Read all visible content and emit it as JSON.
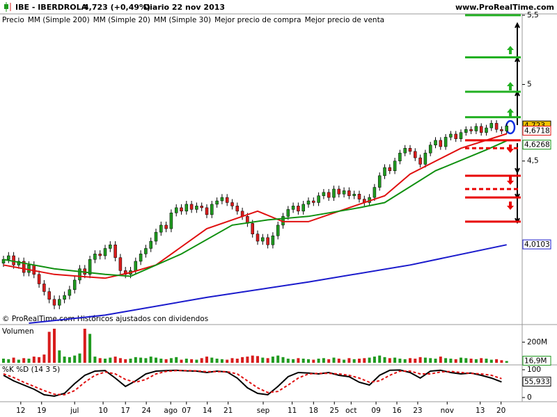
{
  "header": {
    "symbol": "IBE - IBERDROLA",
    "quote": "4,723 (+0,49%)",
    "period": "Diario  22 nov 2013",
    "site": "www.ProRealTime.com"
  },
  "footer": "© ProRealTime.com  Históricos ajustados con dividendos",
  "chart_data": [
    {
      "type": "candlestick",
      "name": "Precio",
      "color": "#000000",
      "up_color": "#1f9a1f",
      "down_color": "#d81c1c",
      "log_scale": true,
      "ylim": [
        3.6,
        5.51
      ],
      "yticks": [
        {
          "value": 4.5,
          "label": "4,5"
        },
        {
          "value": 5,
          "label": "5"
        },
        {
          "value": 5.5,
          "label": "5,5"
        }
      ],
      "end_label": "4,723",
      "xticks": [
        {
          "value": 3.4,
          "label": "12"
        },
        {
          "value": 7.5,
          "label": "19"
        },
        {
          "value": 14,
          "label": "jul"
        },
        {
          "value": 19.6,
          "label": "10"
        },
        {
          "value": 24,
          "label": "17"
        },
        {
          "value": 28.1,
          "label": "24"
        },
        {
          "value": 32.9,
          "label": "ago"
        },
        {
          "value": 36,
          "label": "07"
        },
        {
          "value": 40.1,
          "label": "14"
        },
        {
          "value": 44.2,
          "label": "21"
        },
        {
          "value": 51.1,
          "label": "sep"
        },
        {
          "value": 56.8,
          "label": "11"
        },
        {
          "value": 61,
          "label": "18"
        },
        {
          "value": 65.1,
          "label": "25"
        },
        {
          "value": 68.4,
          "label": "oct"
        },
        {
          "value": 73.3,
          "label": "09"
        },
        {
          "value": 77.4,
          "label": "16"
        },
        {
          "value": 81.5,
          "label": "23"
        },
        {
          "value": 87.3,
          "label": "nov"
        },
        {
          "value": 93.8,
          "label": "13"
        },
        {
          "value": 97.9,
          "label": "20"
        }
      ],
      "ohlc": [
        [
          3.91,
          3.95,
          3.89,
          3.93
        ],
        [
          3.93,
          3.97,
          3.91,
          3.95
        ],
        [
          3.95,
          3.97,
          3.88,
          3.9
        ],
        [
          3.9,
          3.94,
          3.88,
          3.92
        ],
        [
          3.92,
          3.94,
          3.84,
          3.86
        ],
        [
          3.86,
          3.92,
          3.84,
          3.9
        ],
        [
          3.9,
          3.92,
          3.83,
          3.85
        ],
        [
          3.85,
          3.87,
          3.78,
          3.8
        ],
        [
          3.8,
          3.82,
          3.74,
          3.76
        ],
        [
          3.76,
          3.78,
          3.7,
          3.72
        ],
        [
          3.72,
          3.74,
          3.67,
          3.69
        ],
        [
          3.69,
          3.74,
          3.67,
          3.72
        ],
        [
          3.72,
          3.76,
          3.7,
          3.74
        ],
        [
          3.74,
          3.79,
          3.72,
          3.77
        ],
        [
          3.77,
          3.84,
          3.75,
          3.82
        ],
        [
          3.82,
          3.9,
          3.8,
          3.88
        ],
        [
          3.88,
          3.9,
          3.83,
          3.85
        ],
        [
          3.85,
          3.95,
          3.83,
          3.93
        ],
        [
          3.93,
          3.98,
          3.91,
          3.96
        ],
        [
          3.96,
          3.98,
          3.93,
          3.95
        ],
        [
          3.95,
          4.01,
          3.93,
          3.99
        ],
        [
          3.99,
          4.03,
          3.97,
          4.01
        ],
        [
          4.01,
          4.03,
          3.92,
          3.94
        ],
        [
          3.94,
          3.96,
          3.85,
          3.87
        ],
        [
          3.87,
          3.89,
          3.83,
          3.85
        ],
        [
          3.85,
          3.89,
          3.83,
          3.87
        ],
        [
          3.87,
          3.94,
          3.85,
          3.92
        ],
        [
          3.92,
          3.98,
          3.9,
          3.96
        ],
        [
          3.96,
          4.01,
          3.94,
          3.99
        ],
        [
          3.99,
          4.05,
          3.97,
          4.03
        ],
        [
          4.03,
          4.1,
          4.01,
          4.08
        ],
        [
          4.08,
          4.14,
          4.06,
          4.12
        ],
        [
          4.12,
          4.14,
          4.08,
          4.1
        ],
        [
          4.1,
          4.21,
          4.08,
          4.19
        ],
        [
          4.19,
          4.24,
          4.17,
          4.22
        ],
        [
          4.22,
          4.24,
          4.18,
          4.2
        ],
        [
          4.2,
          4.26,
          4.18,
          4.24
        ],
        [
          4.24,
          4.26,
          4.19,
          4.21
        ],
        [
          4.21,
          4.25,
          4.19,
          4.23
        ],
        [
          4.23,
          4.25,
          4.2,
          4.22
        ],
        [
          4.22,
          4.24,
          4.16,
          4.18
        ],
        [
          4.18,
          4.26,
          4.16,
          4.24
        ],
        [
          4.24,
          4.28,
          4.22,
          4.26
        ],
        [
          4.26,
          4.3,
          4.24,
          4.28
        ],
        [
          4.28,
          4.3,
          4.23,
          4.25
        ],
        [
          4.25,
          4.27,
          4.21,
          4.23
        ],
        [
          4.23,
          4.25,
          4.18,
          4.2
        ],
        [
          4.2,
          4.22,
          4.15,
          4.17
        ],
        [
          4.17,
          4.19,
          4.11,
          4.13
        ],
        [
          4.13,
          4.15,
          4.05,
          4.07
        ],
        [
          4.07,
          4.09,
          4.01,
          4.03
        ],
        [
          4.03,
          4.07,
          4.01,
          4.05
        ],
        [
          4.05,
          4.07,
          3.99,
          4.01
        ],
        [
          4.01,
          4.08,
          3.99,
          4.06
        ],
        [
          4.06,
          4.14,
          4.04,
          4.12
        ],
        [
          4.12,
          4.19,
          4.1,
          4.17
        ],
        [
          4.17,
          4.23,
          4.15,
          4.21
        ],
        [
          4.21,
          4.25,
          4.19,
          4.23
        ],
        [
          4.23,
          4.25,
          4.18,
          4.2
        ],
        [
          4.2,
          4.26,
          4.18,
          4.24
        ],
        [
          4.24,
          4.28,
          4.22,
          4.26
        ],
        [
          4.26,
          4.28,
          4.23,
          4.25
        ],
        [
          4.25,
          4.31,
          4.23,
          4.29
        ],
        [
          4.29,
          4.33,
          4.27,
          4.31
        ],
        [
          4.31,
          4.33,
          4.26,
          4.28
        ],
        [
          4.28,
          4.35,
          4.26,
          4.33
        ],
        [
          4.33,
          4.35,
          4.28,
          4.3
        ],
        [
          4.3,
          4.34,
          4.28,
          4.32
        ],
        [
          4.32,
          4.34,
          4.27,
          4.29
        ],
        [
          4.29,
          4.32,
          4.27,
          4.3
        ],
        [
          4.3,
          4.32,
          4.25,
          4.27
        ],
        [
          4.27,
          4.29,
          4.23,
          4.25
        ],
        [
          4.25,
          4.3,
          4.23,
          4.28
        ],
        [
          4.28,
          4.36,
          4.26,
          4.34
        ],
        [
          4.34,
          4.43,
          4.32,
          4.41
        ],
        [
          4.41,
          4.48,
          4.39,
          4.46
        ],
        [
          4.46,
          4.48,
          4.42,
          4.44
        ],
        [
          4.44,
          4.52,
          4.42,
          4.5
        ],
        [
          4.5,
          4.57,
          4.48,
          4.55
        ],
        [
          4.55,
          4.6,
          4.53,
          4.58
        ],
        [
          4.58,
          4.6,
          4.54,
          4.56
        ],
        [
          4.56,
          4.58,
          4.5,
          4.52
        ],
        [
          4.52,
          4.54,
          4.46,
          4.48
        ],
        [
          4.48,
          4.57,
          4.46,
          4.55
        ],
        [
          4.55,
          4.62,
          4.53,
          4.6
        ],
        [
          4.6,
          4.65,
          4.58,
          4.63
        ],
        [
          4.63,
          4.65,
          4.57,
          4.59
        ],
        [
          4.59,
          4.67,
          4.57,
          4.65
        ],
        [
          4.65,
          4.69,
          4.63,
          4.67
        ],
        [
          4.67,
          4.69,
          4.62,
          4.64
        ],
        [
          4.64,
          4.7,
          4.62,
          4.68
        ],
        [
          4.68,
          4.72,
          4.66,
          4.7
        ],
        [
          4.7,
          4.72,
          4.67,
          4.69
        ],
        [
          4.69,
          4.74,
          4.67,
          4.72
        ],
        [
          4.72,
          4.74,
          4.66,
          4.68
        ],
        [
          4.68,
          4.73,
          4.66,
          4.71
        ],
        [
          4.71,
          4.76,
          4.69,
          4.74
        ],
        [
          4.74,
          4.76,
          4.68,
          4.7
        ],
        [
          4.7,
          4.72,
          4.67,
          4.69
        ],
        [
          4.69,
          4.74,
          4.67,
          4.723
        ]
      ],
      "series": [
        {
          "name": "MM (Simple 200)",
          "color": "#1a1acc",
          "end_label": "4,0103",
          "x": [
            5,
            20,
            40,
            60,
            80,
            99
          ],
          "values": [
            3.6,
            3.64,
            3.73,
            3.81,
            3.9,
            4.0103
          ]
        },
        {
          "name": "MM (Simple 20)",
          "color": "#e01010",
          "end_label": "4,6718",
          "x": [
            0,
            10,
            20,
            25,
            30,
            40,
            50,
            55,
            60,
            70,
            75,
            80,
            90,
            99
          ],
          "values": [
            3.9,
            3.85,
            3.83,
            3.86,
            3.9,
            4.1,
            4.2,
            4.14,
            4.14,
            4.24,
            4.29,
            4.42,
            4.58,
            4.6718
          ]
        },
        {
          "name": "MM (Simple 30)",
          "color": "#109010",
          "end_label": "4,6268",
          "x": [
            0,
            10,
            20,
            25,
            35,
            45,
            52,
            60,
            70,
            75,
            85,
            95,
            99
          ],
          "values": [
            3.93,
            3.88,
            3.85,
            3.84,
            3.96,
            4.12,
            4.15,
            4.17,
            4.22,
            4.25,
            4.44,
            4.57,
            4.6268
          ]
        }
      ],
      "levels": [
        {
          "name": "Mejor precio de compra",
          "color": "#22b022",
          "values": [
            5.5,
            5.19,
            4.95,
            4.78
          ],
          "styles": [
            "solid",
            "solid",
            "solid",
            "solid"
          ]
        },
        {
          "name": "Mejor precio de venta",
          "color": "#e80000",
          "values": [
            4.63,
            4.58,
            4.41,
            4.33,
            4.28,
            4.14
          ],
          "styles": [
            "solid",
            "dashed",
            "solid",
            "dashed",
            "solid",
            "solid"
          ]
        }
      ]
    },
    {
      "type": "bar",
      "title": "Volumen",
      "up_color": "#1f9a1f",
      "down_color": "#d81c1c",
      "ylim": [
        0,
        350
      ],
      "yticks": [
        {
          "value": 200,
          "label": "200M"
        }
      ],
      "end_label": "16,9M",
      "values": [
        40,
        35,
        50,
        30,
        45,
        40,
        60,
        55,
        80,
        300,
        330,
        120,
        60,
        55,
        70,
        90,
        330,
        280,
        60,
        45,
        40,
        50,
        60,
        45,
        35,
        40,
        55,
        50,
        45,
        60,
        50,
        40,
        35,
        45,
        55,
        30,
        40,
        35,
        30,
        45,
        60,
        50,
        40,
        35,
        30,
        45,
        40,
        55,
        60,
        70,
        65,
        50,
        45,
        60,
        70,
        55,
        40,
        35,
        45,
        40,
        35,
        30,
        40,
        45,
        35,
        50,
        40,
        30,
        45,
        35,
        40,
        45,
        50,
        60,
        70,
        55,
        45,
        50,
        40,
        35,
        45,
        40,
        55,
        50,
        45,
        40,
        60,
        45,
        40,
        35,
        50,
        45,
        40,
        35,
        45,
        40,
        30,
        35,
        25,
        16.9
      ]
    },
    {
      "type": "line",
      "title": "%K %D (14 3 5)",
      "ylim": [
        0,
        100
      ],
      "yticks": [
        0,
        100
      ],
      "x": [
        0,
        2,
        4,
        6,
        8,
        10,
        12,
        14,
        16,
        18,
        20,
        22,
        24,
        26,
        28,
        30,
        32,
        34,
        36,
        38,
        40,
        42,
        44,
        46,
        48,
        50,
        52,
        54,
        56,
        58,
        60,
        62,
        64,
        66,
        68,
        70,
        72,
        74,
        76,
        78,
        80,
        82,
        84,
        86,
        88,
        90,
        92,
        94,
        96,
        98
      ],
      "series": [
        {
          "name": "%K",
          "color": "#000000",
          "end_label": "55,933",
          "values": [
            80,
            60,
            45,
            30,
            10,
            5,
            15,
            50,
            80,
            95,
            97,
            70,
            40,
            60,
            85,
            95,
            97,
            98,
            96,
            95,
            90,
            95,
            92,
            70,
            35,
            15,
            10,
            40,
            75,
            90,
            88,
            85,
            90,
            80,
            75,
            55,
            45,
            80,
            98,
            99,
            90,
            70,
            95,
            98,
            90,
            85,
            88,
            80,
            70,
            55.933
          ]
        },
        {
          "name": "%D",
          "color": "#e01010",
          "values": [
            85,
            72,
            55,
            40,
            25,
            12,
            10,
            25,
            55,
            80,
            92,
            85,
            65,
            55,
            65,
            85,
            94,
            97,
            97,
            96,
            93,
            93,
            93,
            85,
            60,
            35,
            18,
            22,
            45,
            70,
            85,
            87,
            87,
            85,
            80,
            70,
            55,
            60,
            80,
            95,
            95,
            85,
            85,
            92,
            94,
            90,
            87,
            85,
            80,
            68
          ]
        }
      ]
    }
  ]
}
